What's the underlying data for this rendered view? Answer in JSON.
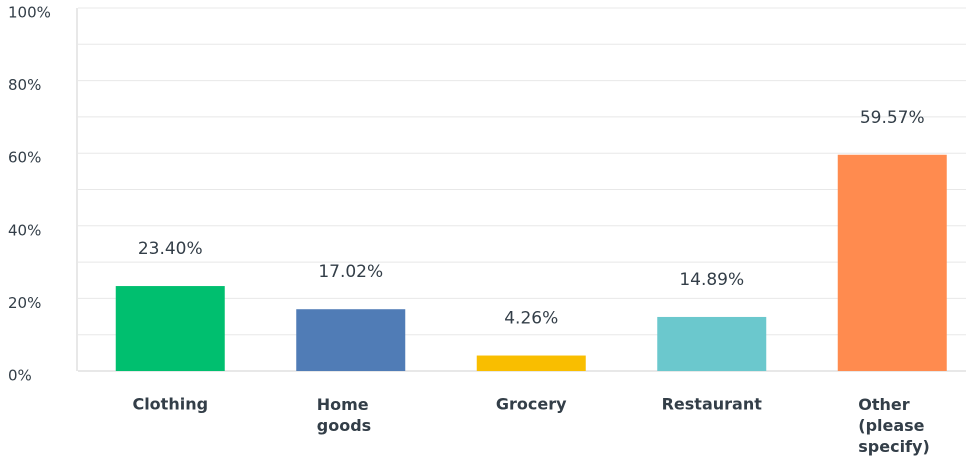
{
  "chart_data": {
    "type": "bar",
    "categories": [
      "Clothing",
      "Home goods",
      "Grocery",
      "Restaurant",
      "Other (please specify)"
    ],
    "values": [
      23.4,
      17.02,
      4.26,
      14.89,
      59.57
    ],
    "value_labels": [
      "23.40%",
      "17.02%",
      "4.26%",
      "14.89%",
      "59.57%"
    ],
    "colors": [
      "#00bf6f",
      "#507cb6",
      "#f9be00",
      "#6bc8cd",
      "#ff8b4f"
    ],
    "ylim": [
      0,
      100
    ],
    "yticks": [
      {
        "value": 0,
        "label": "0%"
      },
      {
        "value": 20,
        "label": "20%"
      },
      {
        "value": 40,
        "label": "40%"
      },
      {
        "value": 60,
        "label": "60%"
      },
      {
        "value": 80,
        "label": "80%"
      },
      {
        "value": 100,
        "label": "100%"
      }
    ],
    "minor_yticks": [
      10,
      30,
      50,
      70,
      90
    ],
    "grid": true
  }
}
